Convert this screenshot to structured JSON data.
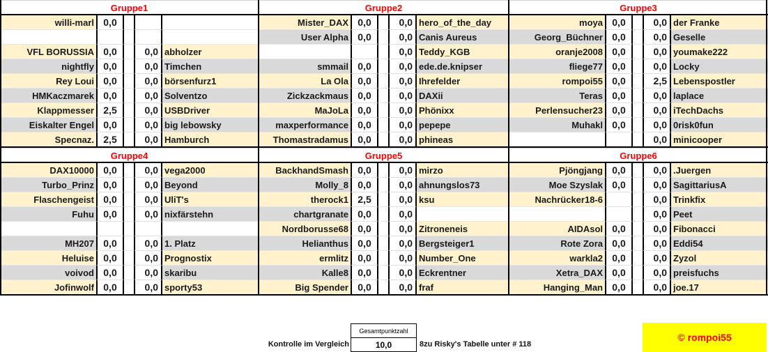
{
  "groups": [
    {
      "title": "Gruppe1",
      "rows": [
        [
          "willi-marl",
          "0,0",
          "",
          ""
        ],
        [
          "",
          "",
          "",
          ""
        ],
        [
          "VFL BORUSSIA",
          "0,0",
          "0,0",
          "abholzer"
        ],
        [
          "nightfly",
          "0,0",
          "0,0",
          "Timchen"
        ],
        [
          "Rey Loui",
          "0,0",
          "0,0",
          "börsenfurz1"
        ],
        [
          "HMKaczmarek",
          "0,0",
          "0,0",
          "Solventzo"
        ],
        [
          "Klappmesser",
          "2,5",
          "0,0",
          "USBDriver"
        ],
        [
          "Eiskalter Engel",
          "0,0",
          "0,0",
          "big lebowsky"
        ],
        [
          "Specnaz.",
          "2,5",
          "0,0",
          "Hamburch"
        ]
      ]
    },
    {
      "title": "Gruppe2",
      "rows": [
        [
          "Mister_DAX",
          "0,0",
          "0,0",
          "hero_of_the_day"
        ],
        [
          "User Alpha",
          "0,0",
          "0,0",
          "Canis Aureus"
        ],
        [
          "",
          "",
          "0,0",
          "Teddy_KGB"
        ],
        [
          "smmail",
          "0,0",
          "0,0",
          "ede.de.knipser"
        ],
        [
          "La Ola",
          "0,0",
          "0,0",
          "Ihrefelder"
        ],
        [
          "Zickzackmaus",
          "0,0",
          "0,0",
          "DAXii"
        ],
        [
          "MaJoLa",
          "0,0",
          "0,0",
          "Phönixx"
        ],
        [
          "maxperformance",
          "0,0",
          "0,0",
          "pepepe"
        ],
        [
          "Thomastradamus",
          "0,0",
          "0,0",
          "phineas"
        ]
      ]
    },
    {
      "title": "Gruppe3",
      "rows": [
        [
          "moya",
          "0,0",
          "0,0",
          "der Franke"
        ],
        [
          "Georg_Büchner",
          "0,0",
          "0,0",
          "Geselle"
        ],
        [
          "oranje2008",
          "0,0",
          "0,0",
          "youmake222"
        ],
        [
          "fliege77",
          "0,0",
          "0,0",
          "Locky"
        ],
        [
          "rompoi55",
          "0,0",
          "2,5",
          "Lebenspostler"
        ],
        [
          "Teras",
          "0,0",
          "0,0",
          "laplace"
        ],
        [
          "Perlensucher23",
          "0,0",
          "0,0",
          "iTechDachs"
        ],
        [
          "Muhakl",
          "0,0",
          "0,0",
          "0risk0fun"
        ],
        [
          "",
          "",
          "0,0",
          "minicooper"
        ]
      ]
    },
    {
      "title": "Gruppe4",
      "rows": [
        [
          "DAX10000",
          "0,0",
          "0,0",
          "vega2000"
        ],
        [
          "Turbo_Prinz",
          "0,0",
          "0,0",
          "Beyond"
        ],
        [
          "Flaschengeist",
          "0,0",
          "0,0",
          "UliT's"
        ],
        [
          "Fuhu",
          "0,0",
          "0,0",
          "nixfärstehn"
        ],
        [
          "",
          "",
          "",
          ""
        ],
        [
          "MH207",
          "0,0",
          "0,0",
          "1. Platz"
        ],
        [
          "Heluise",
          "0,0",
          "0,0",
          "Prognostix"
        ],
        [
          "voivod",
          "0,0",
          "0,0",
          "skaribu"
        ],
        [
          "Jofinwolf",
          "0,0",
          "0,0",
          "sporty53"
        ]
      ]
    },
    {
      "title": "Gruppe5",
      "rows": [
        [
          "BackhandSmash",
          "0,0",
          "0,0",
          "mirzo"
        ],
        [
          "Molly_8",
          "0,0",
          "0,0",
          "ahnungslos73"
        ],
        [
          "therock1",
          "2,5",
          "0,0",
          "ksu"
        ],
        [
          "chartgranate",
          "0,0",
          "0,0",
          ""
        ],
        [
          "Nordborusse68",
          "0,0",
          "0,0",
          "Zitroneneis"
        ],
        [
          "Helianthus",
          "0,0",
          "0,0",
          "Bergsteiger1"
        ],
        [
          "ermlitz",
          "0,0",
          "0,0",
          "Number_One"
        ],
        [
          "Kalle8",
          "0,0",
          "0,0",
          "Eckrentner"
        ],
        [
          "Big Spender",
          "0,0",
          "0,0",
          "fraf"
        ]
      ]
    },
    {
      "title": "Gruppe6",
      "rows": [
        [
          "Pjöngjang",
          "0,0",
          "0,0",
          ".Juergen"
        ],
        [
          "Moe Szyslak",
          "0,0",
          "0,0",
          "SagittariusA"
        ],
        [
          "Nachrücker18-6",
          "",
          "0,0",
          "Trinkfix"
        ],
        [
          "",
          "",
          "0,0",
          "Peet"
        ],
        [
          "AIDAsol",
          "0,0",
          "0,0",
          "Fibonacci"
        ],
        [
          "Rote Zora",
          "0,0",
          "0,0",
          "Eddi54"
        ],
        [
          "warkla2",
          "0,0",
          "0,0",
          "Zyzol"
        ],
        [
          "Xetra_DAX",
          "0,0",
          "0,0",
          "preisfuchs"
        ],
        [
          "Hanging_Man",
          "0,0",
          "0,0",
          "joe.17"
        ]
      ]
    }
  ],
  "footer": {
    "control_label": "Kontrolle im Vergleich",
    "total_header": "Gesamtpunktzahl",
    "total_value": "10,0",
    "note": "8zu Risky's Tabelle unter # 118",
    "copyright": "© rompoi55"
  },
  "colors": {
    "row_odd": "#fff2cc",
    "row_even": "#d9d9d9",
    "group_title": "#ff0000",
    "copyright_bg": "#ffff00"
  }
}
